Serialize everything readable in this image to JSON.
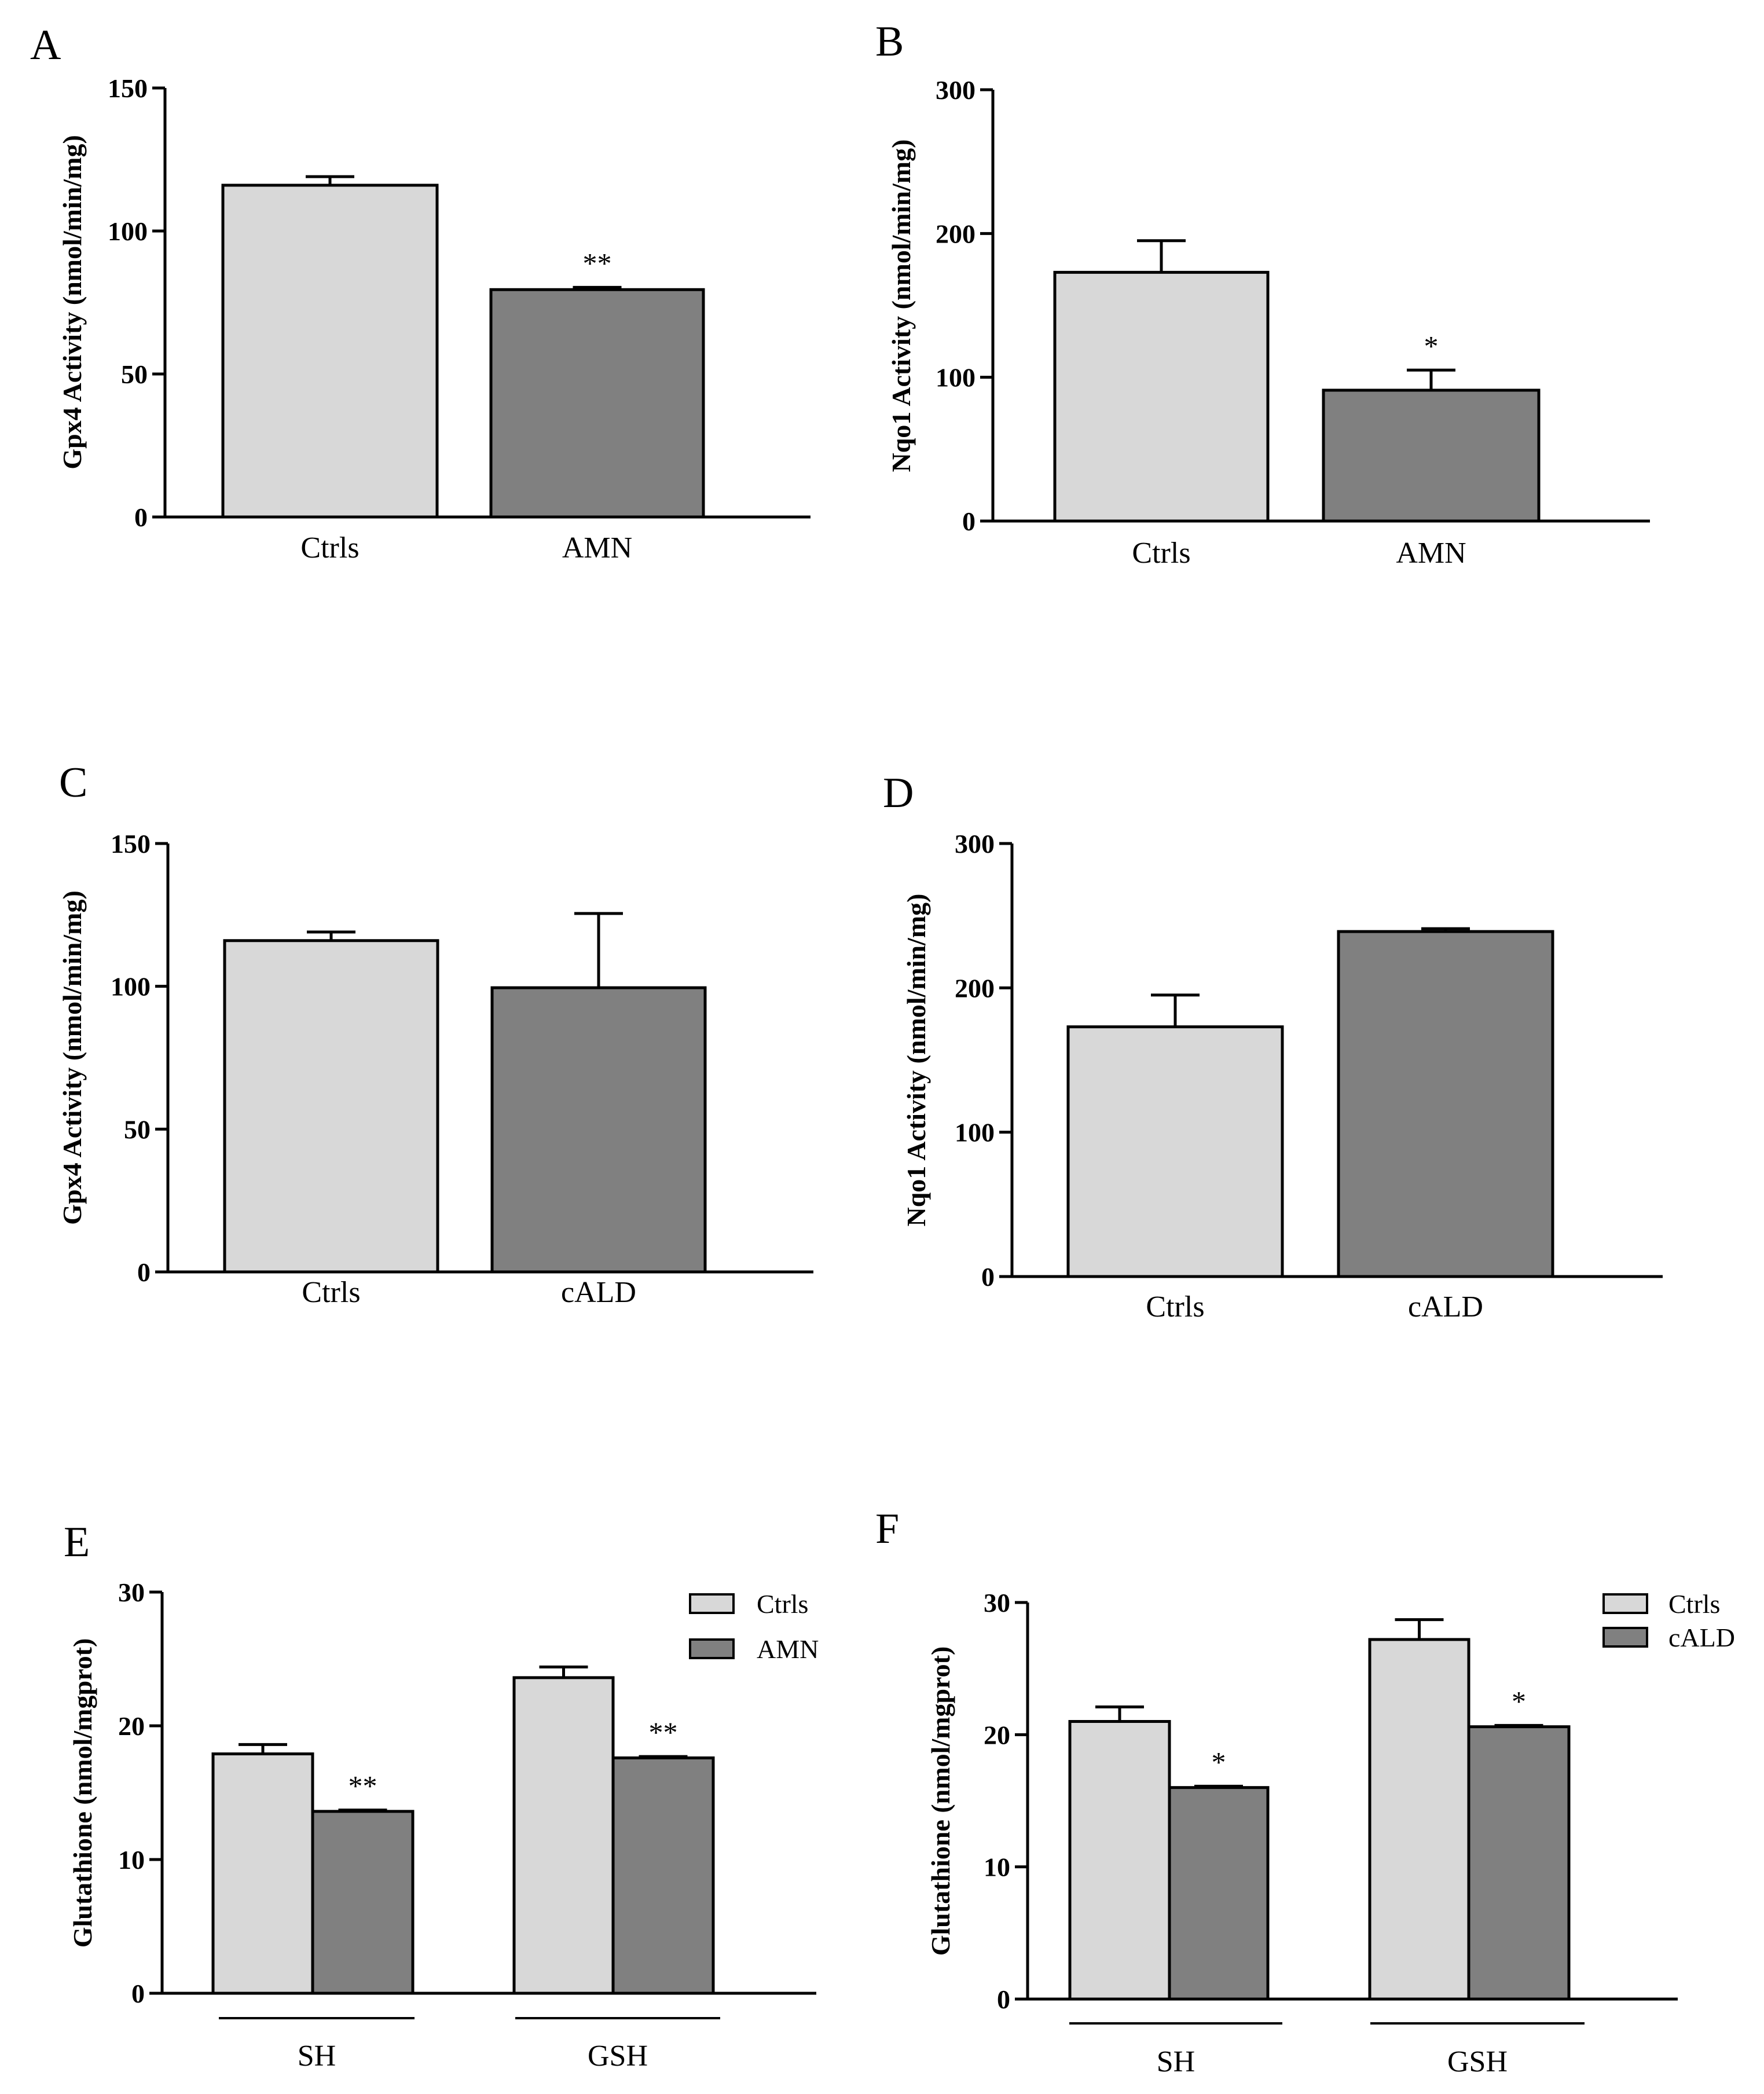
{
  "colors": {
    "ctrl": "#d8d8d8",
    "disease": "#808080",
    "stroke": "#000000"
  },
  "chart_data": [
    {
      "panel": "A",
      "type": "bar",
      "ylabel": "Gpx4 Activity (nmol/min/mg)",
      "ylim": [
        0,
        150
      ],
      "yticks": [
        0,
        50,
        100,
        150
      ],
      "ytick_labels": [
        "0",
        "50",
        "100",
        "150"
      ],
      "categories": [
        "Ctrls",
        "AMN"
      ],
      "series": [
        {
          "name": "value",
          "values": [
            116,
            79.5
          ],
          "errors": [
            3,
            0.8
          ],
          "significance": [
            "",
            "**"
          ]
        }
      ]
    },
    {
      "panel": "B",
      "type": "bar",
      "ylabel": "Nqo1 Activity (nmol/min/mg)",
      "ylim": [
        0,
        300
      ],
      "yticks": [
        0,
        100,
        200,
        300
      ],
      "ytick_labels": [
        "0",
        "100",
        "200",
        "300"
      ],
      "categories": [
        "Ctrls",
        "AMN"
      ],
      "series": [
        {
          "name": "value",
          "values": [
            173,
            91
          ],
          "errors": [
            22,
            14
          ],
          "significance": [
            "",
            "*"
          ]
        }
      ]
    },
    {
      "panel": "C",
      "type": "bar",
      "ylabel": "Gpx4 Activity (nmol/min/mg)",
      "ylim": [
        0,
        150
      ],
      "yticks": [
        0,
        50,
        100,
        150
      ],
      "ytick_labels": [
        "0",
        "50",
        "100",
        "150"
      ],
      "categories": [
        "Ctrls",
        "cALD"
      ],
      "series": [
        {
          "name": "value",
          "values": [
            116,
            99.5
          ],
          "errors": [
            3,
            26
          ],
          "significance": [
            "",
            ""
          ]
        }
      ]
    },
    {
      "panel": "D",
      "type": "bar",
      "ylabel": "Nqo1 Activity (nmol/min/mg)",
      "ylim": [
        0,
        300
      ],
      "yticks": [
        0,
        100,
        200,
        300
      ],
      "ytick_labels": [
        "0",
        "100",
        "200",
        "300"
      ],
      "categories": [
        "Ctrls",
        "cALD"
      ],
      "series": [
        {
          "name": "value",
          "values": [
            173,
            239
          ],
          "errors": [
            22,
            2
          ],
          "significance": [
            "",
            ""
          ]
        }
      ]
    },
    {
      "panel": "E",
      "type": "bar",
      "ylabel": "Glutathione (nmol/mgprot)",
      "ylim": [
        0,
        30
      ],
      "yticks": [
        0,
        10,
        20,
        30
      ],
      "ytick_labels": [
        "0",
        "10",
        "20",
        "30"
      ],
      "categories": [
        "SH",
        "GSH"
      ],
      "legend": [
        "Ctrls",
        "AMN"
      ],
      "series": [
        {
          "name": "Ctrls",
          "values": [
            17.9,
            23.6
          ],
          "errors": [
            0.7,
            0.8
          ],
          "significance": [
            "",
            ""
          ]
        },
        {
          "name": "AMN",
          "values": [
            13.6,
            17.6
          ],
          "errors": [
            0.1,
            0.1
          ],
          "significance": [
            "**",
            "**"
          ]
        }
      ]
    },
    {
      "panel": "F",
      "type": "bar",
      "ylabel": "Glutathione (nmol/mgprot)",
      "ylim": [
        0,
        30
      ],
      "yticks": [
        0,
        10,
        20,
        30
      ],
      "ytick_labels": [
        "0",
        "10",
        "20",
        "30"
      ],
      "categories": [
        "SH",
        "GSH"
      ],
      "legend": [
        "Ctrls",
        "cALD"
      ],
      "series": [
        {
          "name": "Ctrls",
          "values": [
            21,
            27.2
          ],
          "errors": [
            1.1,
            1.5
          ],
          "significance": [
            "",
            ""
          ]
        },
        {
          "name": "cALD",
          "values": [
            16,
            20.6
          ],
          "errors": [
            0.1,
            0.1
          ],
          "significance": [
            "*",
            "*"
          ]
        }
      ]
    }
  ]
}
